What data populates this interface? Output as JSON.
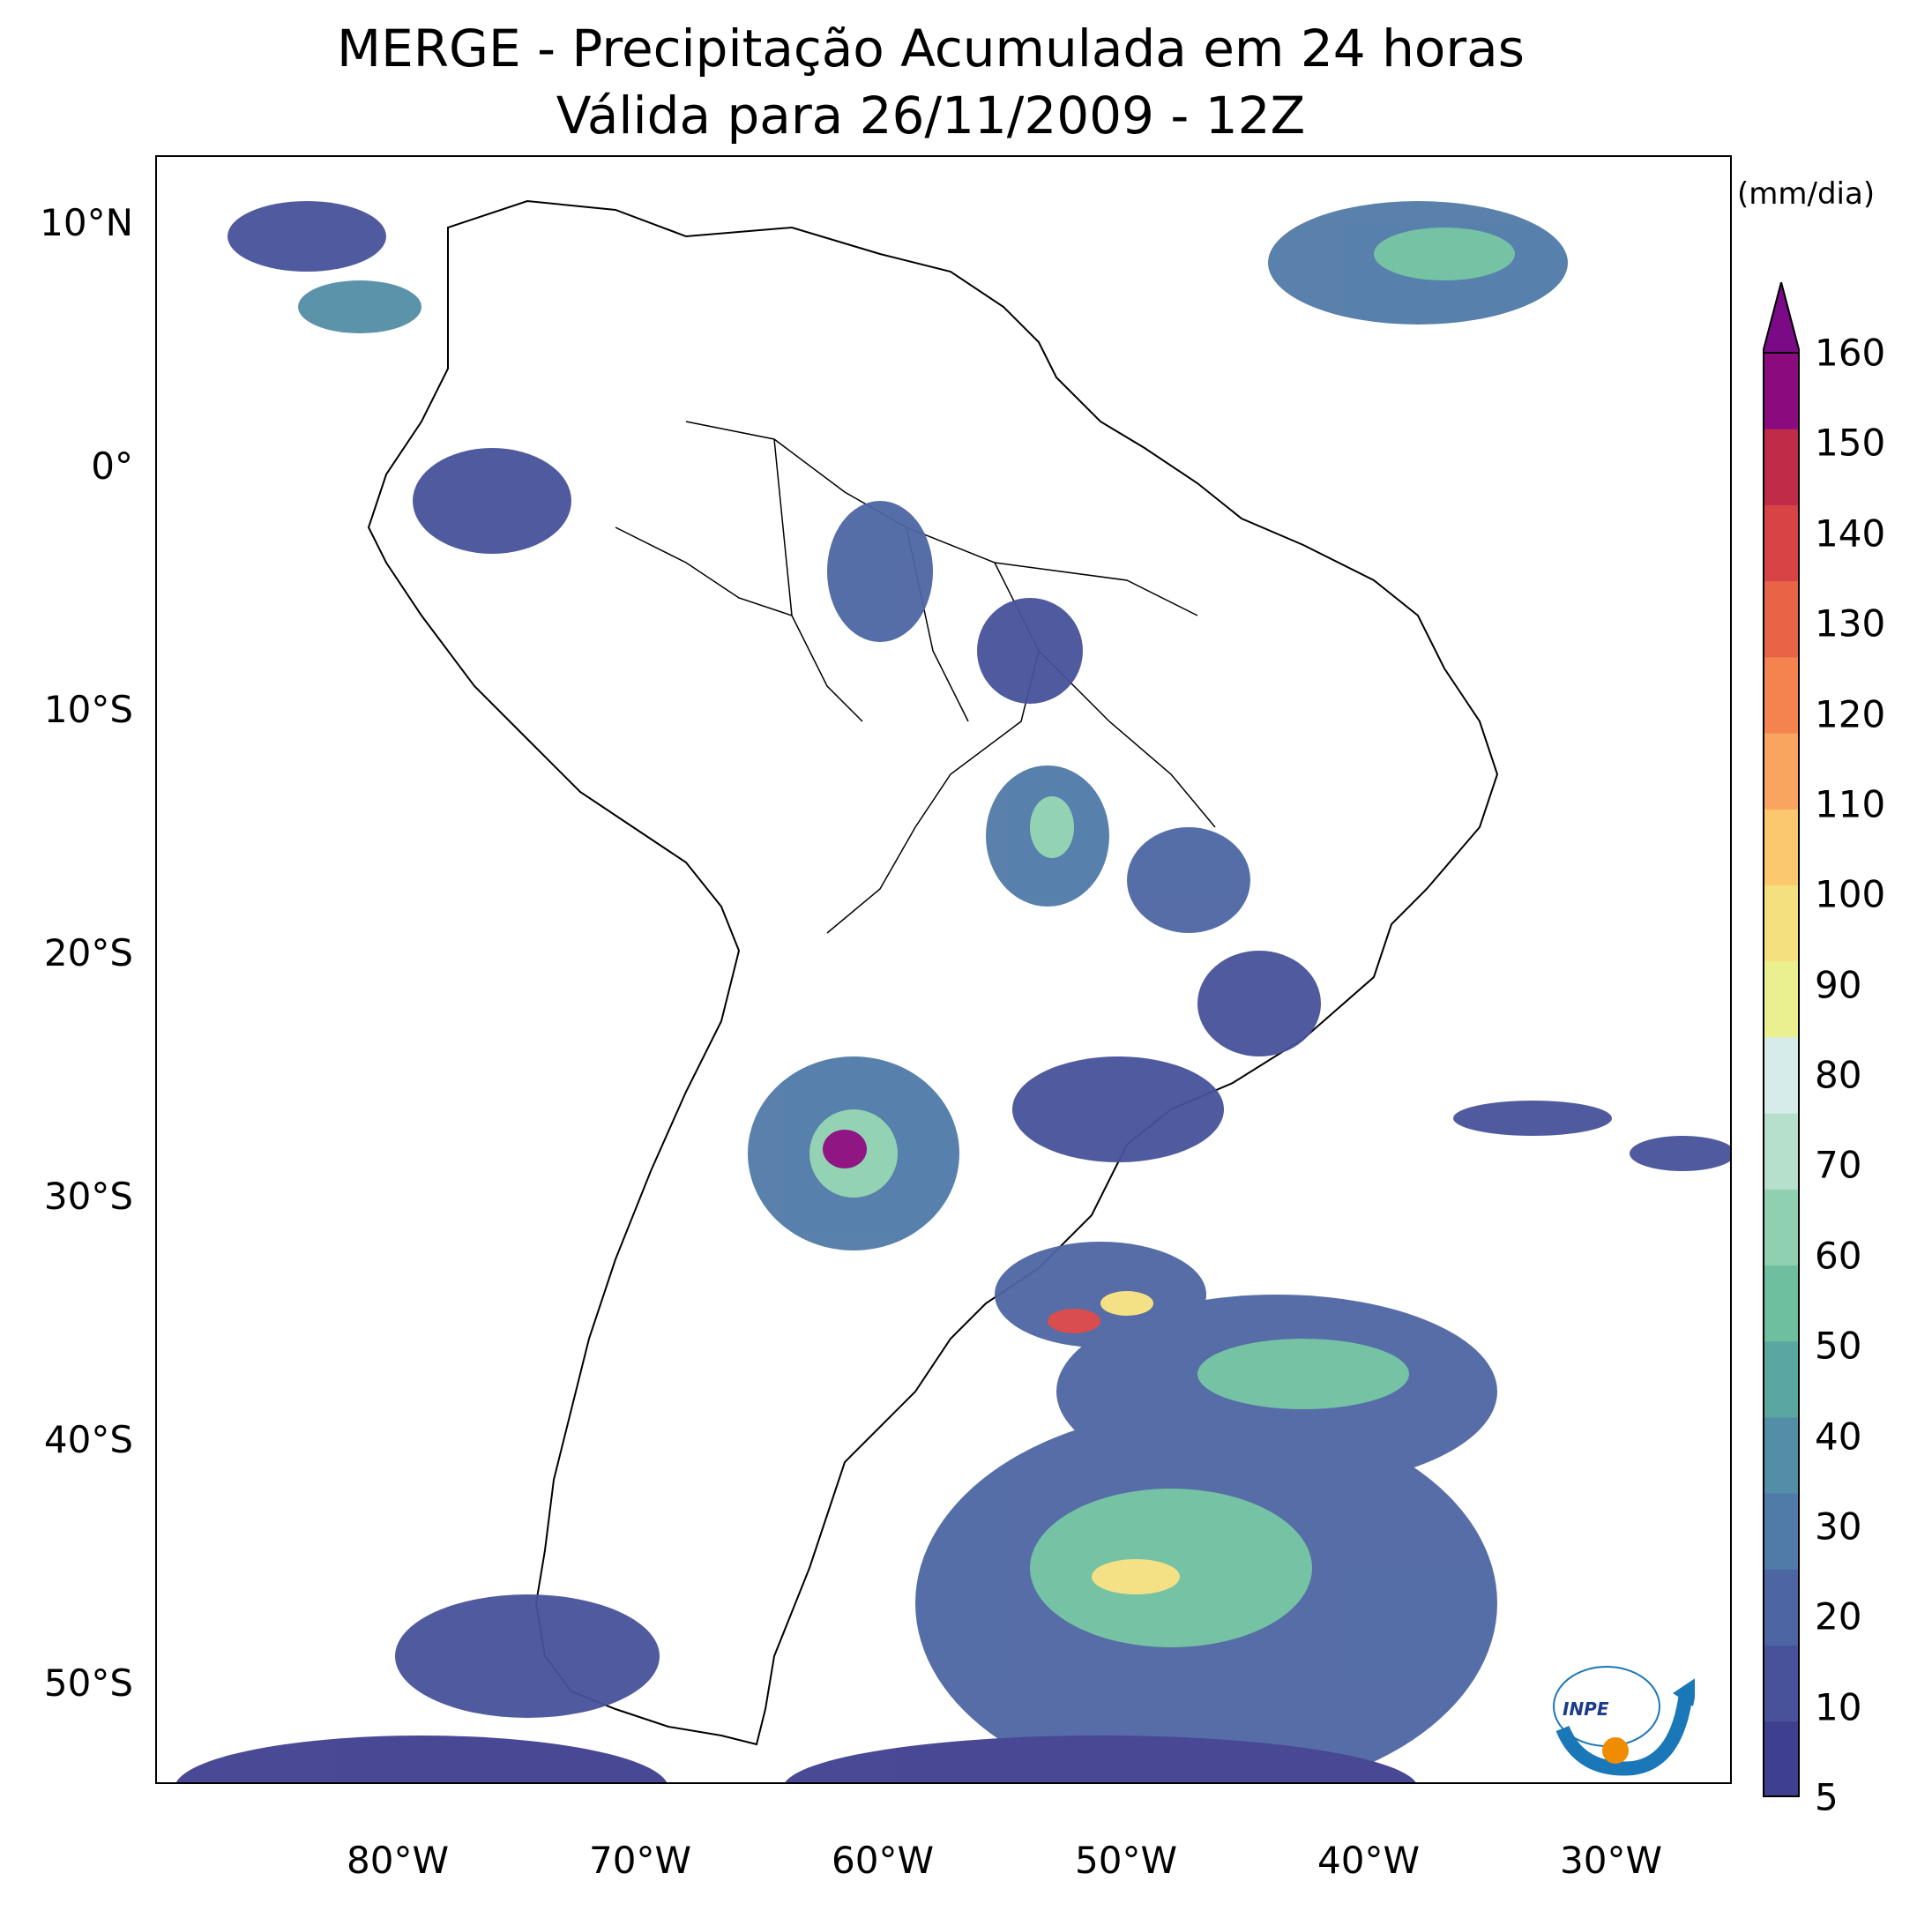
{
  "title": {
    "line1": "MERGE - Precipitação Acumulada em 24 horas",
    "line2": "Válida para 26/11/2009 - 12Z"
  },
  "map": {
    "lat_labels": [
      "10°N",
      "0°",
      "10°S",
      "20°S",
      "30°S",
      "40°S",
      "50°S"
    ],
    "lon_labels": [
      "80°W",
      "70°W",
      "60°W",
      "50°W",
      "40°W",
      "30°W"
    ],
    "extent": {
      "lon_min": -90,
      "lon_max": -25,
      "lat_min": -56,
      "lat_max": 13
    }
  },
  "colorbar": {
    "unit": "(mm/dia)",
    "ticks": [
      "5",
      "10",
      "20",
      "30",
      "40",
      "50",
      "60",
      "70",
      "80",
      "90",
      "100",
      "110",
      "120",
      "130",
      "140",
      "150",
      "160"
    ],
    "colors": [
      "#3f3f8f",
      "#47529a",
      "#4d66a3",
      "#507aa8",
      "#528ea6",
      "#5aa6a0",
      "#6ebfa0",
      "#8fd0b0",
      "#b7e0cc",
      "#d6ecea",
      "#eaf08f",
      "#f5e07f",
      "#fbc76f",
      "#f9a560",
      "#f48350",
      "#e96447",
      "#d84446",
      "#c02c48",
      "#8b0a7e"
    ],
    "extend_color": "#7a0a86"
  },
  "logo": {
    "text": "INPE"
  }
}
